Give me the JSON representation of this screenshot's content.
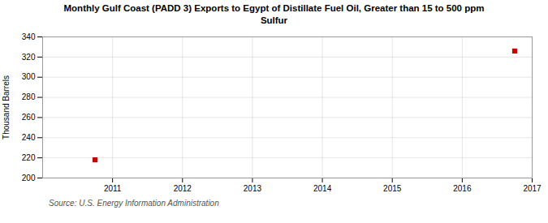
{
  "chart_data": {
    "type": "scatter",
    "title": "Monthly Gulf Coast (PADD 3) Exports to Egypt of Distillate Fuel Oil, Greater than 15 to 500 ppm\nSulfur",
    "ylabel": "Thousand Barrels",
    "source": "Source: U.S. Energy Information Administration",
    "x": [
      2010.75,
      2016.75
    ],
    "values": [
      218,
      326
    ],
    "color": "#cc0000",
    "marker": "square",
    "xlim": [
      2010,
      2017
    ],
    "ylim": [
      200,
      340
    ],
    "xticks": [
      2011,
      2012,
      2013,
      2014,
      2015,
      2016,
      2017
    ],
    "yticks": [
      200,
      220,
      240,
      260,
      280,
      300,
      320,
      340
    ],
    "grid": true
  }
}
